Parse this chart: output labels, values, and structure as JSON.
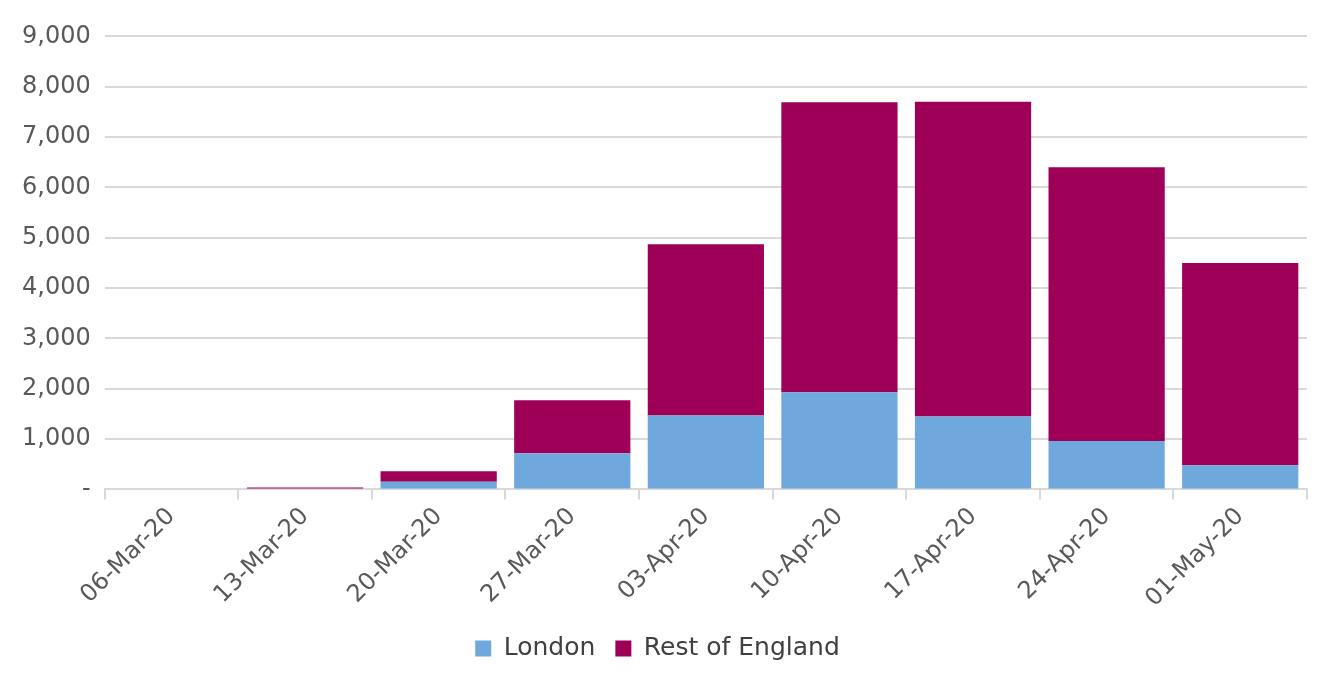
{
  "chart_data": {
    "type": "bar",
    "stacked": true,
    "categories": [
      "06-Mar-20",
      "13-Mar-20",
      "20-Mar-20",
      "27-Mar-20",
      "03-Apr-20",
      "10-Apr-20",
      "17-Apr-20",
      "24-Apr-20",
      "01-May-20"
    ],
    "series": [
      {
        "name": "London",
        "color": "#6fa8dc",
        "values": [
          0,
          null,
          150,
          720,
          1470,
          1930,
          1450,
          960,
          480
        ]
      },
      {
        "name": "Rest of England",
        "color": "#9e0058",
        "values": [
          0,
          40,
          210,
          1050,
          3400,
          5760,
          6250,
          5440,
          4020
        ]
      }
    ],
    "ylim": [
      0,
      9000
    ],
    "yticks": [
      {
        "value": 0,
        "label": "-"
      },
      {
        "value": 1000,
        "label": "1,000"
      },
      {
        "value": 2000,
        "label": "2,000"
      },
      {
        "value": 3000,
        "label": "3,000"
      },
      {
        "value": 4000,
        "label": "4,000"
      },
      {
        "value": 5000,
        "label": "5,000"
      },
      {
        "value": 6000,
        "label": "6,000"
      },
      {
        "value": 7000,
        "label": "7,000"
      },
      {
        "value": 8000,
        "label": "8,000"
      },
      {
        "value": 9000,
        "label": "9,000"
      }
    ],
    "grid": "y",
    "legend": "bottom"
  }
}
